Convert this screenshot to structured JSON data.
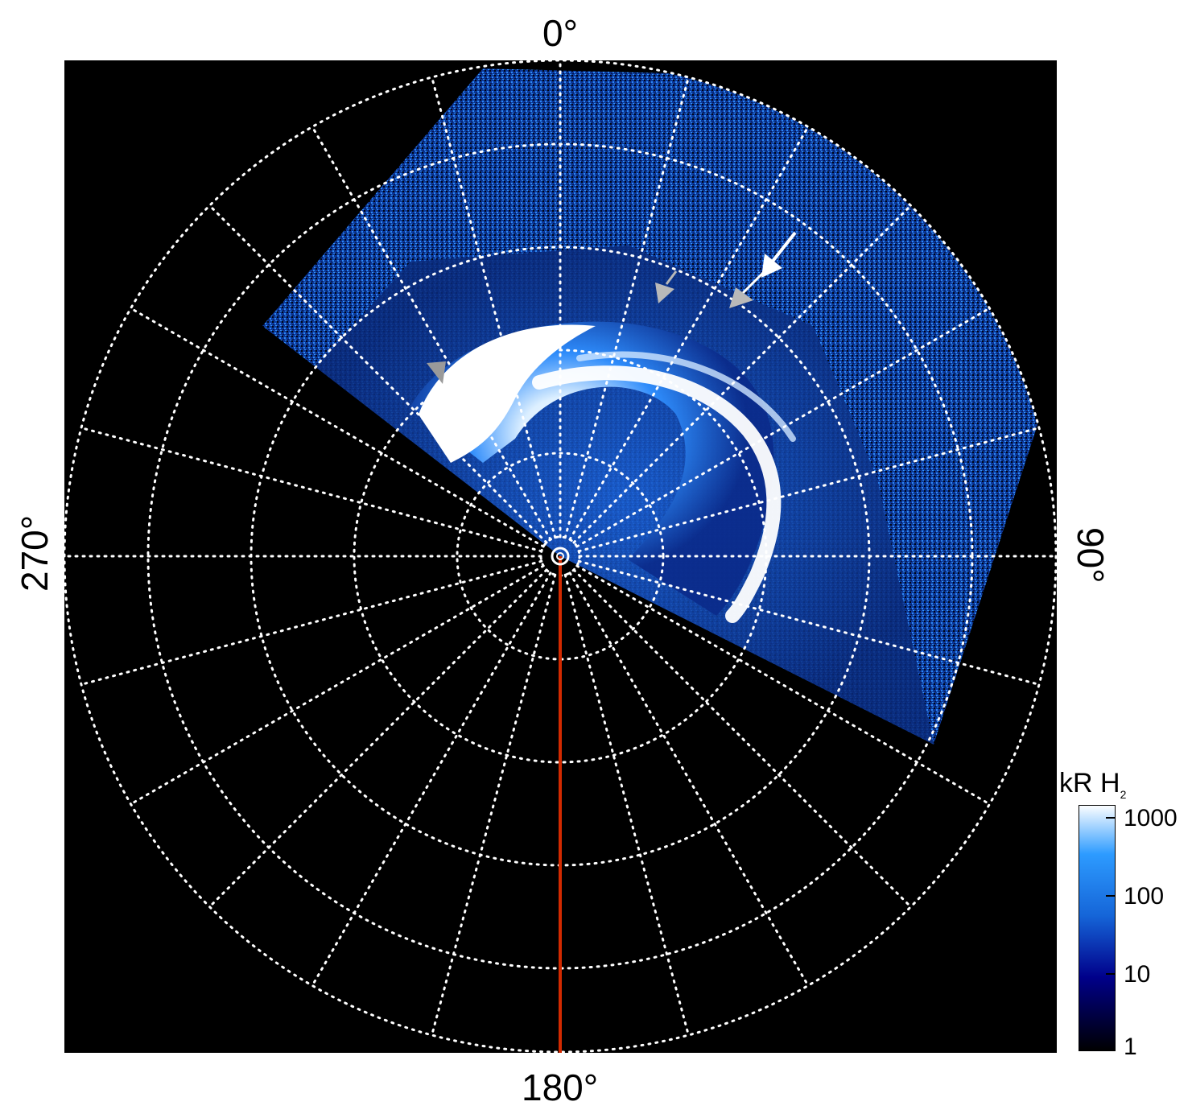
{
  "figure": {
    "azimuth_labels": {
      "top": "0°",
      "right": "90°",
      "bottom": "180°",
      "left": "270°"
    },
    "grid": true,
    "colorbar": {
      "title_main": "kR H",
      "title_sub": "2",
      "scale": "log",
      "ticks": [
        "1000",
        "100",
        "10",
        "1"
      ],
      "colors": [
        "#000000",
        "#00008a",
        "#1565d8",
        "#2d9bff",
        "#ffffff"
      ]
    },
    "colors": {
      "background": "#000000",
      "aurora_core": "#ffffff",
      "aurora_mid": "#1e7fff",
      "aurora_dim": "#0a2a8a",
      "meridian": "#d22a00",
      "arrow_white": "#ffffff",
      "arrow_grey": "#b9b9b9"
    }
  }
}
